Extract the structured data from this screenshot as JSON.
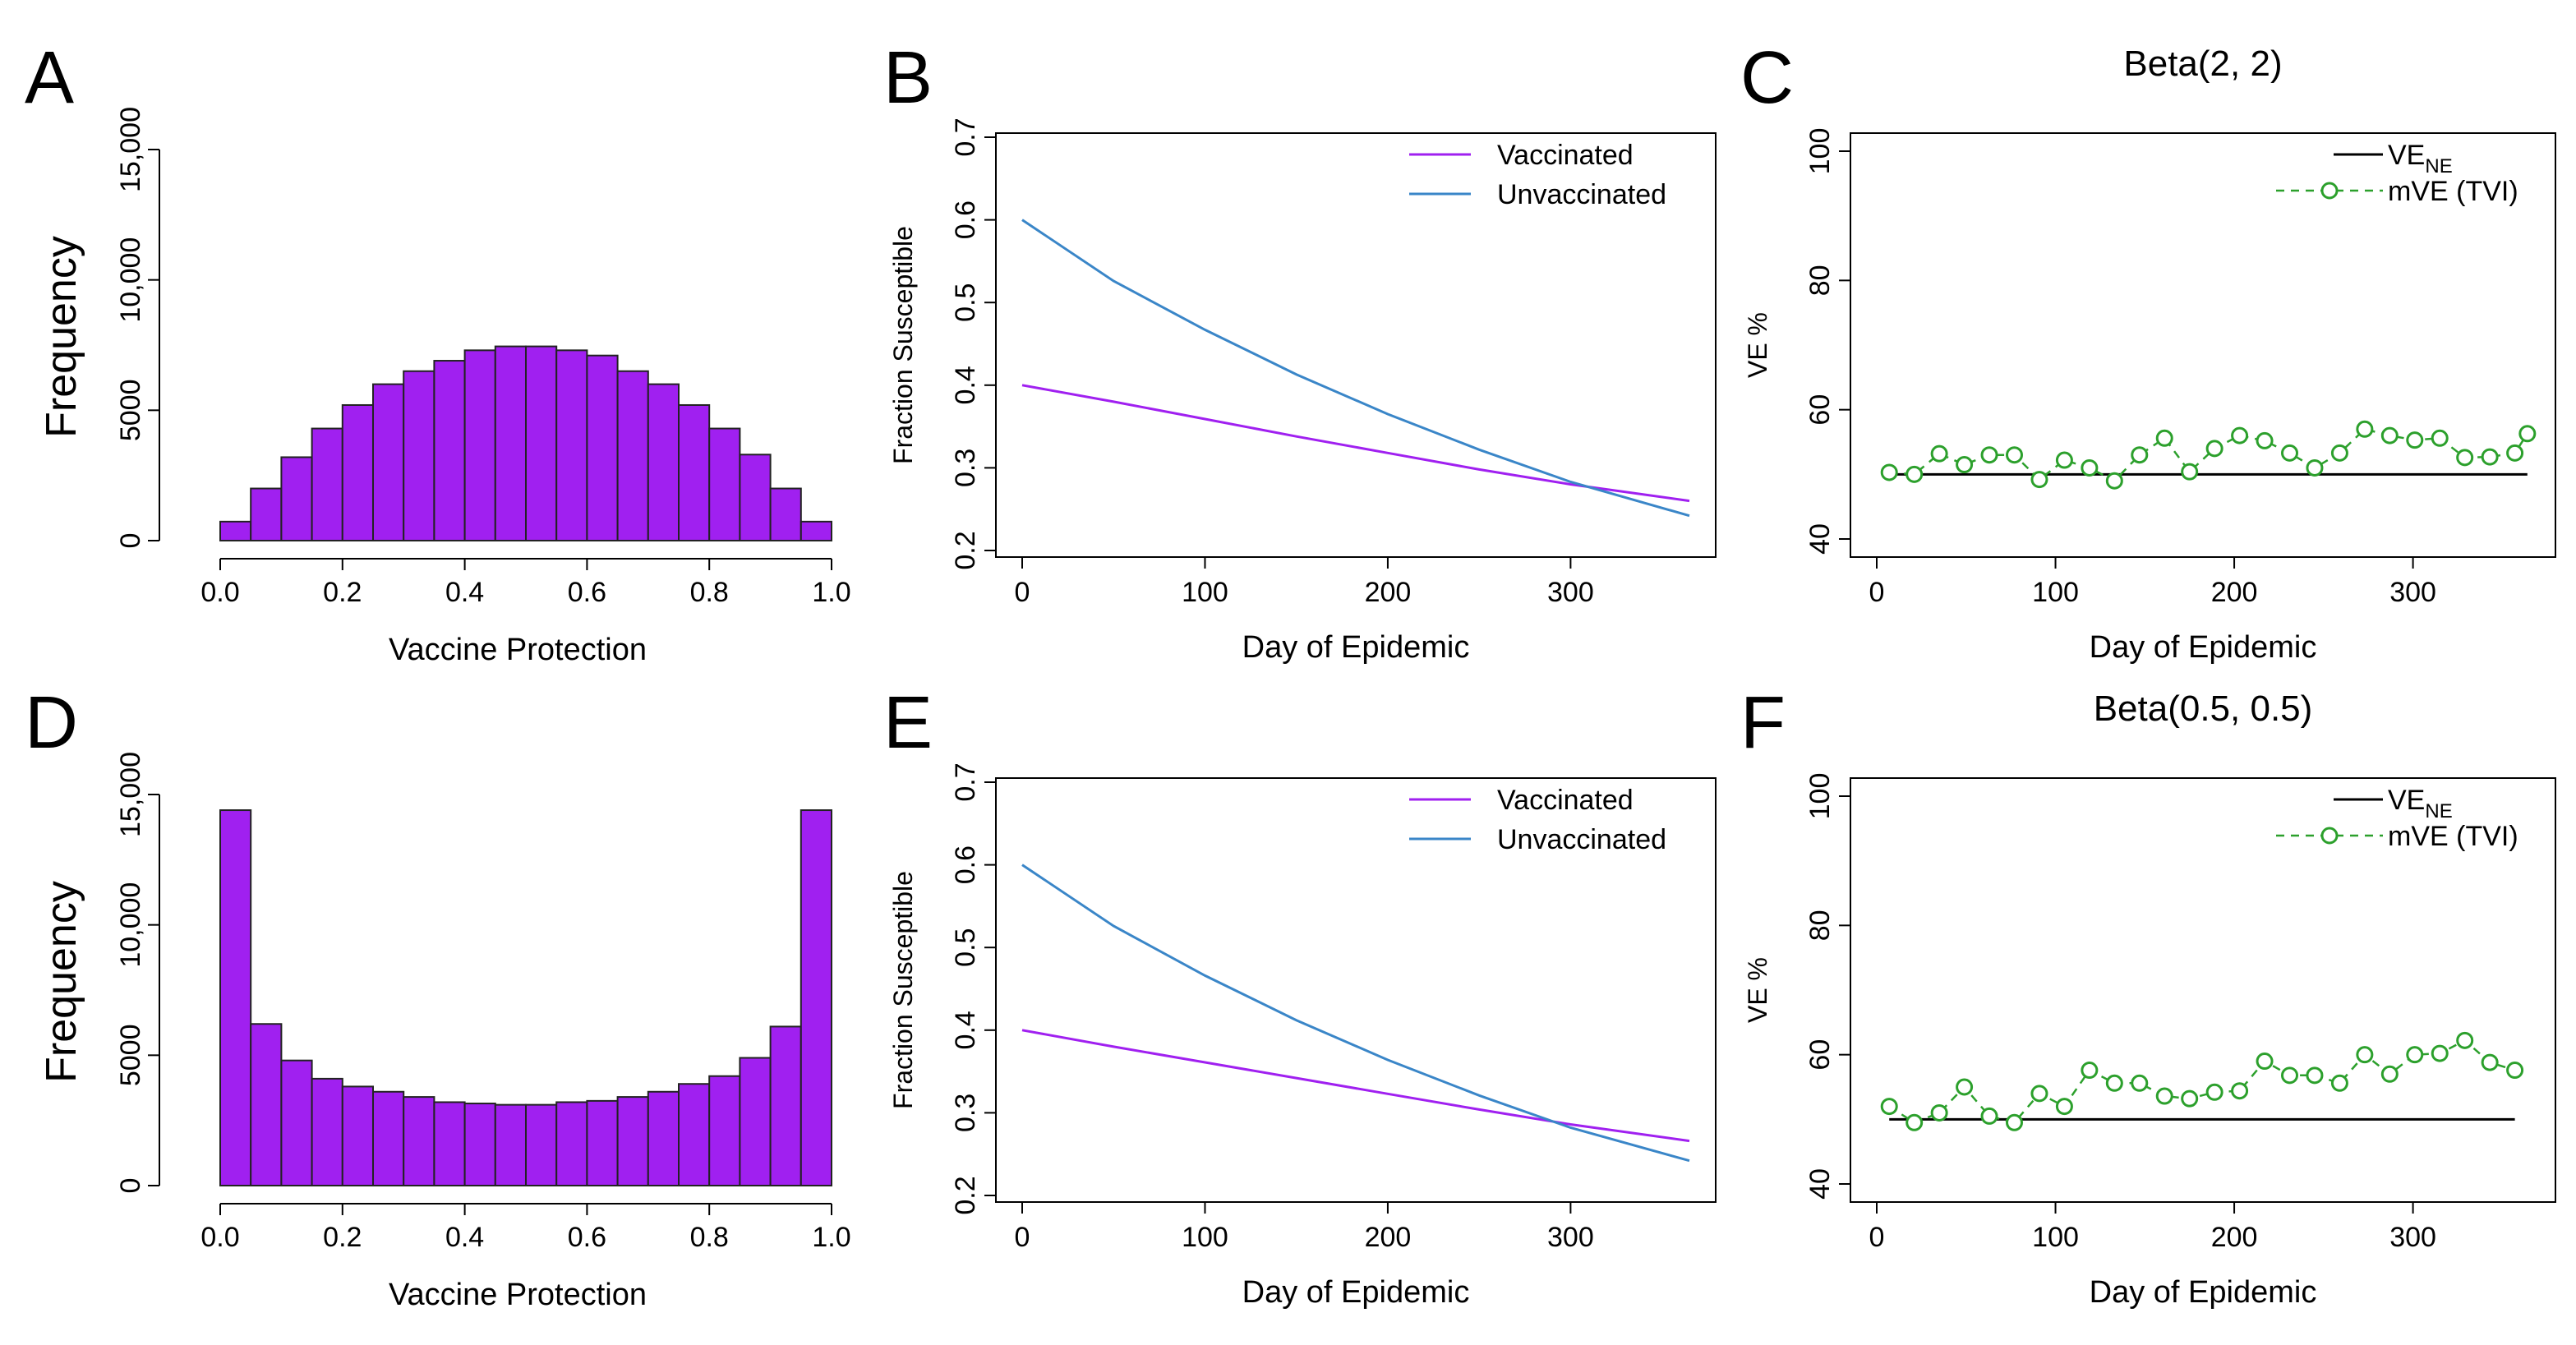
{
  "chart_data": [
    {
      "panel": "A",
      "type": "bar",
      "title": "",
      "xlabel": "Vaccine Protection",
      "ylabel": "Frequency",
      "xlim": [
        0,
        1
      ],
      "ylim": [
        0,
        15000
      ],
      "xticks": [
        "0.0",
        "0.2",
        "0.4",
        "0.6",
        "0.8",
        "1.0"
      ],
      "yticks": [
        "0",
        "5000",
        "10,000",
        "15,000"
      ],
      "bin_width": 0.05,
      "values": [
        730,
        2000,
        3200,
        4300,
        5200,
        6000,
        6500,
        6900,
        7300,
        7450,
        7450,
        7300,
        7100,
        6500,
        6000,
        5200,
        4300,
        3300,
        2000,
        730
      ],
      "bar_color": "#a020f0"
    },
    {
      "panel": "B",
      "type": "line",
      "title": "",
      "xlabel": "Day of Epidemic",
      "ylabel": "Fraction Susceptible",
      "xlim": [
        0,
        365
      ],
      "ylim": [
        0.2,
        0.7
      ],
      "xticks": [
        "0",
        "100",
        "200",
        "300"
      ],
      "yticks": [
        "0.2",
        "0.3",
        "0.4",
        "0.5",
        "0.6",
        "0.7"
      ],
      "legend": [
        "Vaccinated",
        "Unvaccinated"
      ],
      "x": [
        0,
        50,
        100,
        150,
        200,
        250,
        300,
        365
      ],
      "series": [
        {
          "name": "Vaccinated",
          "color": "#a020f0",
          "values": [
            0.4,
            0.38,
            0.359,
            0.338,
            0.318,
            0.298,
            0.28,
            0.26
          ]
        },
        {
          "name": "Unvaccinated",
          "color": "#3a86c8",
          "values": [
            0.6,
            0.526,
            0.467,
            0.413,
            0.365,
            0.322,
            0.283,
            0.242
          ]
        }
      ]
    },
    {
      "panel": "C",
      "type": "line",
      "title": "Beta(2, 2)",
      "xlabel": "Day of Epidemic",
      "ylabel": "VE %",
      "xlim": [
        0,
        365
      ],
      "ylim": [
        40,
        100
      ],
      "xticks": [
        "0",
        "100",
        "200",
        "300"
      ],
      "yticks": [
        "40",
        "60",
        "80",
        "100"
      ],
      "legend": [
        "VE",
        "mVE (TVI)"
      ],
      "legend_subscript": "NE",
      "ve_ne": 50,
      "x": [
        7,
        21,
        35,
        49,
        63,
        77,
        91,
        105,
        119,
        133,
        147,
        161,
        175,
        189,
        203,
        217,
        231,
        245,
        259,
        273,
        287,
        301,
        315,
        329,
        343,
        357,
        364
      ],
      "series": [
        {
          "name": "mVE (TVI)",
          "color": "#2ca02c",
          "values": [
            50.3,
            50.0,
            53.2,
            51.5,
            53.0,
            53.0,
            49.2,
            52.2,
            51.0,
            49.0,
            53.0,
            55.6,
            50.4,
            54.0,
            56.0,
            55.2,
            53.3,
            51.0,
            53.3,
            57.0,
            56.0,
            55.3,
            55.6,
            52.6,
            52.7,
            53.3,
            56.3
          ]
        }
      ]
    },
    {
      "panel": "D",
      "type": "bar",
      "title": "",
      "xlabel": "Vaccine Protection",
      "ylabel": "Frequency",
      "xlim": [
        0,
        1
      ],
      "ylim": [
        0,
        15000
      ],
      "xticks": [
        "0.0",
        "0.2",
        "0.4",
        "0.6",
        "0.8",
        "1.0"
      ],
      "yticks": [
        "0",
        "5000",
        "10,000",
        "15,000"
      ],
      "bin_width": 0.05,
      "values": [
        14400,
        6200,
        4800,
        4100,
        3800,
        3600,
        3400,
        3200,
        3150,
        3100,
        3100,
        3200,
        3250,
        3400,
        3600,
        3900,
        4200,
        4900,
        6100,
        14400
      ],
      "bar_color": "#a020f0"
    },
    {
      "panel": "E",
      "type": "line",
      "title": "",
      "xlabel": "Day of Epidemic",
      "ylabel": "Fraction Susceptible",
      "xlim": [
        0,
        365
      ],
      "ylim": [
        0.2,
        0.7
      ],
      "xticks": [
        "0",
        "100",
        "200",
        "300"
      ],
      "yticks": [
        "0.2",
        "0.3",
        "0.4",
        "0.5",
        "0.6",
        "0.7"
      ],
      "legend": [
        "Vaccinated",
        "Unvaccinated"
      ],
      "x": [
        0,
        50,
        100,
        150,
        200,
        250,
        300,
        365
      ],
      "series": [
        {
          "name": "Vaccinated",
          "color": "#a020f0",
          "values": [
            0.4,
            0.38,
            0.361,
            0.342,
            0.323,
            0.304,
            0.286,
            0.266
          ]
        },
        {
          "name": "Unvaccinated",
          "color": "#3a86c8",
          "values": [
            0.6,
            0.526,
            0.466,
            0.412,
            0.364,
            0.321,
            0.282,
            0.242
          ]
        }
      ]
    },
    {
      "panel": "F",
      "type": "line",
      "title": "Beta(0.5, 0.5)",
      "xlabel": "Day of Epidemic",
      "ylabel": "VE %",
      "xlim": [
        0,
        365
      ],
      "ylim": [
        40,
        100
      ],
      "xticks": [
        "0",
        "100",
        "200",
        "300"
      ],
      "yticks": [
        "40",
        "60",
        "80",
        "100"
      ],
      "legend": [
        "VE",
        "mVE (TVI)"
      ],
      "legend_subscript": "NE",
      "ve_ne": 50,
      "x": [
        7,
        21,
        35,
        49,
        63,
        77,
        91,
        105,
        119,
        133,
        147,
        161,
        175,
        189,
        203,
        217,
        231,
        245,
        259,
        273,
        287,
        301,
        315,
        329,
        343,
        357
      ],
      "series": [
        {
          "name": "mVE (TVI)",
          "color": "#2ca02c",
          "values": [
            52.0,
            49.5,
            51.0,
            55.0,
            50.5,
            49.5,
            54.0,
            52.0,
            57.6,
            55.6,
            55.6,
            53.6,
            53.2,
            54.2,
            54.4,
            59.0,
            56.8,
            56.8,
            55.6,
            60.0,
            57.0,
            60.0,
            60.2,
            62.2,
            58.8,
            57.6
          ]
        }
      ]
    }
  ]
}
